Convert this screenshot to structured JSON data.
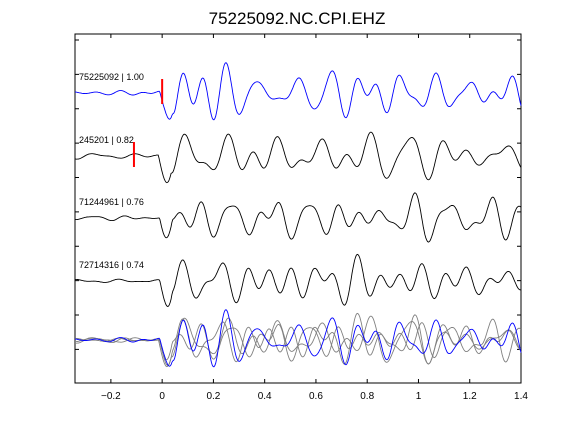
{
  "chart_data": {
    "type": "line",
    "title": "75225092.NC.CPI.EHZ",
    "xlabel": "",
    "ylabel": "",
    "xlim": [
      -0.34,
      1.4
    ],
    "xticks": [
      -0.2,
      0,
      0.2,
      0.4,
      0.6,
      0.8,
      1,
      1.2,
      1.4
    ],
    "xtick_labels": [
      "−0.2",
      "0",
      "0.2",
      "0.4",
      "0.6",
      "0.8",
      "1",
      "1.2",
      "1.4"
    ],
    "grid": false,
    "series": [
      {
        "name": "75225092 | 1.00",
        "color": "#0000ff",
        "pick_time": 0.0,
        "seed": 3
      },
      {
        "name": "245201 | 0.82",
        "color": "#000000",
        "pick_time": -0.11,
        "seed": 11
      },
      {
        "name": "71244961 | 0.76",
        "color": "#000000",
        "seed": 23
      },
      {
        "name": "72714316 | 0.74",
        "color": "#000000",
        "seed": 37
      }
    ],
    "overlay": {
      "reference_color": "#0000ff",
      "others_color": "#808080"
    },
    "pick_marker_color": "#ff0000"
  }
}
